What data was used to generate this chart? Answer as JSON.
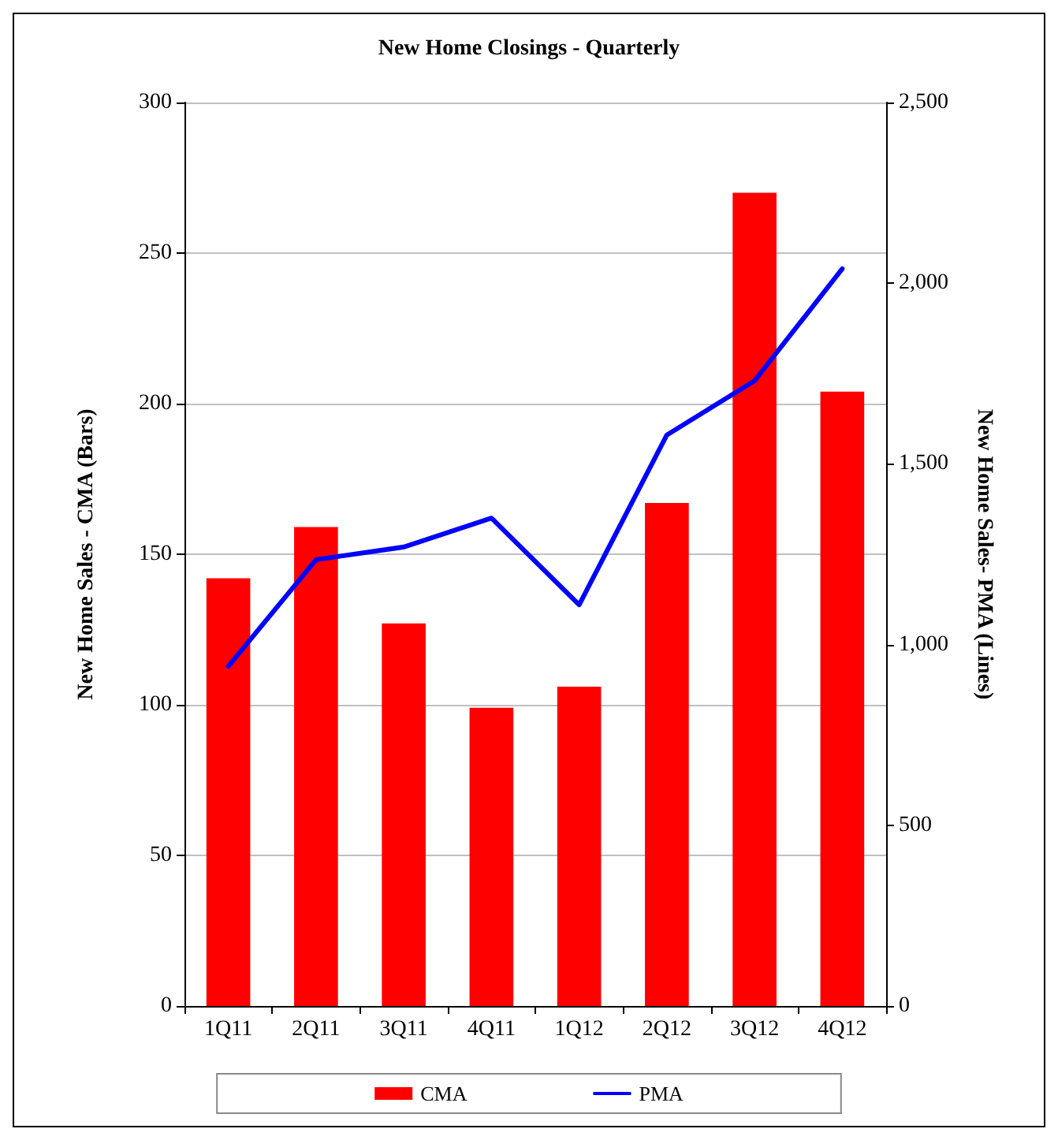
{
  "chart_data": {
    "type": "bar",
    "title": "New Home Closings - Quarterly",
    "ylabel": "New Home Sales - CMA (Bars)",
    "y2label": "New Home Sales- PMA (Lines)",
    "categories": [
      "1Q11",
      "2Q11",
      "3Q11",
      "4Q11",
      "1Q12",
      "2Q12",
      "3Q12",
      "4Q12"
    ],
    "series": [
      {
        "name": "CMA",
        "color": "#ff0000",
        "values": [
          142,
          159,
          127,
          99,
          106,
          167,
          270,
          204
        ]
      },
      {
        "name": "PMA",
        "type": "line",
        "axis": "y2",
        "color": "#0000ff",
        "values": [
          940,
          1235,
          1270,
          1350,
          1110,
          1580,
          1730,
          2040
        ]
      }
    ],
    "ylim": [
      0,
      300
    ],
    "yticks": [
      0,
      50,
      100,
      150,
      200,
      250,
      300
    ],
    "y2lim": [
      0,
      2500
    ],
    "y2ticks": [
      0,
      {
        "value": 500,
        "label": "500"
      },
      {
        "value": 1000,
        "label": "1,000"
      },
      {
        "value": 1500,
        "label": "1,500"
      },
      {
        "value": 2000,
        "label": "2,000"
      },
      {
        "value": 2500,
        "label": "2,500"
      }
    ],
    "grid": "y",
    "legend": "bottom",
    "marker": "none",
    "line_style": "solid"
  }
}
